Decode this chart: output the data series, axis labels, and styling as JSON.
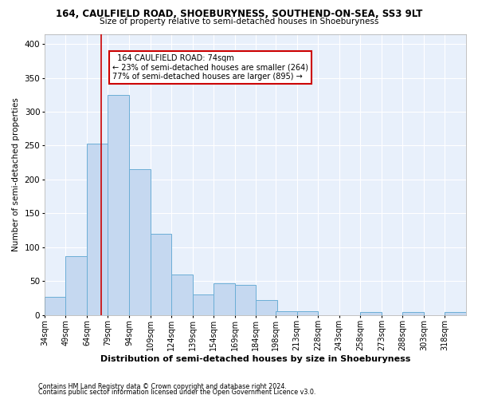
{
  "title1": "164, CAULFIELD ROAD, SHOEBURYNESS, SOUTHEND-ON-SEA, SS3 9LT",
  "title2": "Size of property relative to semi-detached houses in Shoeburyness",
  "xlabel": "Distribution of semi-detached houses by size in Shoeburyness",
  "ylabel": "Number of semi-detached properties",
  "annotation_line1": "164 CAULFIELD ROAD: 74sqm",
  "annotation_line2": "← 23% of semi-detached houses are smaller (264)",
  "annotation_line3": "77% of semi-detached houses are larger (895) →",
  "footer1": "Contains HM Land Registry data © Crown copyright and database right 2024.",
  "footer2": "Contains public sector information licensed under the Open Government Licence v3.0.",
  "bar_edges": [
    34,
    49,
    64,
    79,
    94,
    109,
    124,
    139,
    154,
    169,
    184,
    198,
    213,
    228,
    243,
    258,
    273,
    288,
    303,
    318,
    333
  ],
  "bar_heights": [
    27,
    87,
    253,
    325,
    215,
    120,
    60,
    30,
    47,
    44,
    22,
    5,
    5,
    0,
    0,
    4,
    0,
    4,
    0,
    4
  ],
  "bar_color": "#c5d8f0",
  "bar_edge_color": "#6baed6",
  "subject_value": 74,
  "ylim": [
    0,
    415
  ],
  "yticks": [
    0,
    50,
    100,
    150,
    200,
    250,
    300,
    350,
    400
  ],
  "background_color": "#e8f0fb",
  "grid_color": "#ffffff",
  "red_line_color": "#cc0000",
  "annotation_box_edge_color": "#cc0000",
  "annotation_box_face_color": "#ffffff"
}
